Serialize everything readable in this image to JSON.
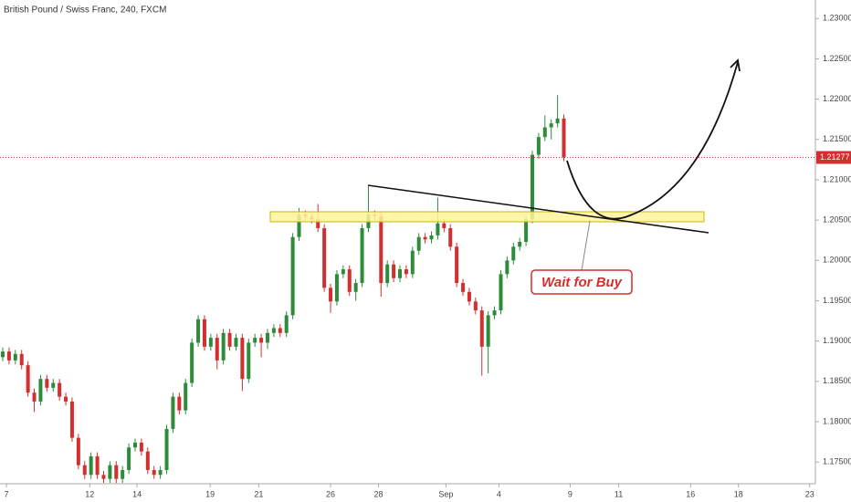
{
  "chart_data": {
    "type": "candlestick",
    "title": "British Pound / Swiss Franc, 240, FXCM",
    "open": [
      1.188,
      1.1887,
      1.1876,
      1.1884,
      1.187,
      1.1836,
      1.1825,
      1.1853,
      1.1842,
      1.1848,
      1.1831,
      1.1825,
      1.178,
      1.1746,
      1.1734,
      1.1757,
      1.1734,
      1.1729,
      1.1746,
      1.1729,
      1.174,
      1.1768,
      1.1774,
      1.1763,
      1.174,
      1.1734,
      1.174,
      1.1791,
      1.1831,
      1.1814,
      1.1848,
      1.1898,
      1.1927,
      1.1893,
      1.1904,
      1.1876,
      1.191,
      1.1893,
      1.1904,
      1.1853,
      1.1898,
      1.1904,
      1.1898,
      1.191,
      1.1916,
      1.191,
      1.1932,
      1.2029,
      1.2057,
      1.2054,
      1.2051,
      1.204,
      1.1966,
      1.1949,
      1.1983,
      1.1989,
      1.1961,
      1.1972,
      1.204,
      1.2057,
      1.2055,
      1.1972,
      1.1995,
      1.1978,
      1.1989,
      1.1983,
      1.2012,
      1.2029,
      1.2026,
      1.2031,
      1.2046,
      1.204,
      1.2017,
      1.1972,
      1.1961,
      1.1949,
      1.1938,
      1.1893,
      1.1932,
      1.1938,
      1.1983,
      1.2,
      1.2017,
      1.2023,
      1.2051,
      1.2131,
      1.2153,
      1.2165,
      1.217,
      1.2176
    ],
    "high": [
      1.1892,
      1.1892,
      1.1889,
      1.1889,
      1.1875,
      1.1841,
      1.1858,
      1.1858,
      1.1853,
      1.1853,
      1.1836,
      1.183,
      1.1785,
      1.1751,
      1.1762,
      1.1762,
      1.1739,
      1.1751,
      1.1751,
      1.1745,
      1.1773,
      1.1779,
      1.1779,
      1.1768,
      1.1745,
      1.1745,
      1.1796,
      1.1836,
      1.1836,
      1.1853,
      1.1903,
      1.1932,
      1.1932,
      1.1909,
      1.1909,
      1.1915,
      1.1915,
      1.1909,
      1.1909,
      1.1903,
      1.1909,
      1.1909,
      1.1915,
      1.1921,
      1.1921,
      1.1937,
      1.2034,
      1.2065,
      1.2062,
      1.2059,
      1.207,
      1.2045,
      1.1971,
      1.1988,
      1.1994,
      1.1994,
      1.1977,
      1.2045,
      1.2092,
      1.2062,
      1.206,
      1.2,
      1.2,
      1.1994,
      1.1994,
      1.2017,
      1.2034,
      1.2034,
      1.2036,
      1.2078,
      1.2051,
      1.2045,
      1.2022,
      1.1977,
      1.1966,
      1.1954,
      1.1943,
      1.1937,
      1.1943,
      1.1988,
      1.2005,
      1.2022,
      1.2028,
      1.2056,
      1.2136,
      1.2158,
      1.218,
      1.2175,
      1.2205,
      1.2181
    ],
    "low": [
      1.1875,
      1.1871,
      1.1871,
      1.1865,
      1.1831,
      1.1812,
      1.182,
      1.1837,
      1.1837,
      1.1826,
      1.182,
      1.1775,
      1.1741,
      1.1729,
      1.1729,
      1.1729,
      1.1724,
      1.1724,
      1.1724,
      1.1724,
      1.1735,
      1.1763,
      1.1758,
      1.1735,
      1.1729,
      1.1729,
      1.1735,
      1.1786,
      1.1809,
      1.1809,
      1.1843,
      1.1893,
      1.1888,
      1.1888,
      1.1865,
      1.1871,
      1.1888,
      1.1888,
      1.1838,
      1.1848,
      1.1893,
      1.188,
      1.189,
      1.1905,
      1.1905,
      1.1905,
      1.1927,
      1.2024,
      1.2049,
      1.2046,
      1.2035,
      1.1961,
      1.1935,
      1.1944,
      1.1978,
      1.1956,
      1.195,
      1.1967,
      1.2035,
      1.205,
      1.1955,
      1.1967,
      1.1973,
      1.1973,
      1.1978,
      1.1978,
      1.2007,
      1.2021,
      1.2021,
      1.2026,
      1.2035,
      1.2012,
      1.1967,
      1.1956,
      1.1944,
      1.1933,
      1.1857,
      1.186,
      1.1927,
      1.1933,
      1.1978,
      1.1995,
      1.2012,
      1.2018,
      1.2046,
      1.2126,
      1.2148,
      1.215,
      1.2165,
      1.2123
    ],
    "close": [
      1.1887,
      1.1876,
      1.1884,
      1.187,
      1.1836,
      1.1825,
      1.1853,
      1.1842,
      1.1848,
      1.1831,
      1.1825,
      1.178,
      1.1746,
      1.1734,
      1.1757,
      1.1734,
      1.1729,
      1.1746,
      1.1729,
      1.174,
      1.1768,
      1.1774,
      1.1763,
      1.174,
      1.1734,
      1.174,
      1.1791,
      1.1831,
      1.1814,
      1.1848,
      1.1898,
      1.1927,
      1.1893,
      1.1904,
      1.1876,
      1.191,
      1.1893,
      1.1904,
      1.1853,
      1.1898,
      1.1904,
      1.1898,
      1.191,
      1.1916,
      1.191,
      1.1932,
      1.2029,
      1.2057,
      1.2054,
      1.2051,
      1.204,
      1.1966,
      1.1949,
      1.1983,
      1.1989,
      1.1961,
      1.1972,
      1.204,
      1.2057,
      1.2055,
      1.1972,
      1.1995,
      1.1978,
      1.1989,
      1.1983,
      1.2012,
      1.2029,
      1.2026,
      1.2031,
      1.2046,
      1.204,
      1.2017,
      1.1972,
      1.1961,
      1.1949,
      1.1938,
      1.1893,
      1.1932,
      1.1938,
      1.1983,
      1.2,
      1.2017,
      1.2023,
      1.2051,
      1.2131,
      1.2153,
      1.2165,
      1.217,
      1.2176,
      1.2128
    ],
    "up_color": "#2e8b3a",
    "down_color": "#d32f2f",
    "last_price": 1.21277,
    "ylim": [
      1.1723,
      1.2323
    ],
    "yticks": [
      {
        "value": 1.23,
        "label": "1.23000"
      },
      {
        "value": 1.225,
        "label": "1.22500"
      },
      {
        "value": 1.22,
        "label": "1.22000"
      },
      {
        "value": 1.215,
        "label": "1.21500"
      },
      {
        "value": 1.21,
        "label": "1.21000"
      },
      {
        "value": 1.205,
        "label": "1.20500"
      },
      {
        "value": 1.2,
        "label": "1.20000"
      },
      {
        "value": 1.195,
        "label": "1.19500"
      },
      {
        "value": 1.19,
        "label": "1.19000"
      },
      {
        "value": 1.185,
        "label": "1.18500"
      },
      {
        "value": 1.18,
        "label": "1.18000"
      },
      {
        "value": 1.175,
        "label": "1.17500"
      }
    ],
    "xlim": [
      -0.435,
      128.9
    ],
    "xticks": [
      {
        "value": 0.58,
        "label": "7"
      },
      {
        "value": 13.8,
        "label": "12"
      },
      {
        "value": 21.3,
        "label": "14"
      },
      {
        "value": 32.9,
        "label": "19"
      },
      {
        "value": 40.6,
        "label": "21"
      },
      {
        "value": 52.0,
        "label": "26"
      },
      {
        "value": 59.6,
        "label": "28"
      },
      {
        "value": 70.3,
        "label": "Sep"
      },
      {
        "value": 78.7,
        "label": "4"
      },
      {
        "value": 90.0,
        "label": "9"
      },
      {
        "value": 97.7,
        "label": "11"
      },
      {
        "value": 109.1,
        "label": "16"
      },
      {
        "value": 116.7,
        "label": "18"
      },
      {
        "value": 128.0,
        "label": "23"
      }
    ],
    "annotation": "Wait for Buy"
  }
}
